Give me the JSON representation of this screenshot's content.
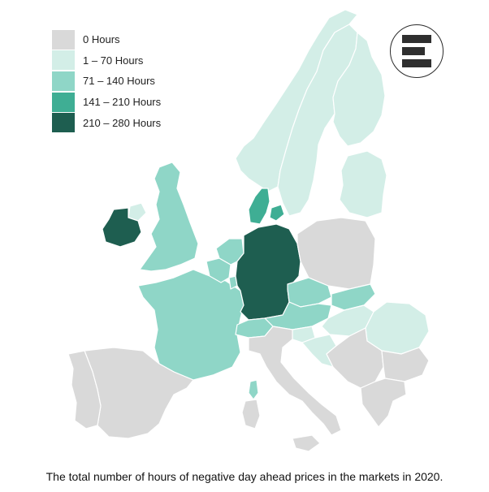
{
  "legend": {
    "items": [
      {
        "label": "0 Hours",
        "color": "#d9d9d9"
      },
      {
        "label": "1 – 70 Hours",
        "color": "#d3eee7"
      },
      {
        "label": "71 – 140 Hours",
        "color": "#8fd6c7"
      },
      {
        "label": "141 – 210 Hours",
        "color": "#3fae94"
      },
      {
        "label": "210 – 280 Hours",
        "color": "#1e5e50"
      }
    ]
  },
  "caption": "The total number of hours of negative day ahead prices in the markets in 2020.",
  "logo": {
    "icon": "stacked-bars-logo-icon"
  },
  "colors": {
    "border": "#ffffff",
    "background": "#ffffff"
  },
  "regions": [
    {
      "name": "germany",
      "class": 4
    },
    {
      "name": "ireland",
      "class": 4
    },
    {
      "name": "denmark",
      "class": 3
    },
    {
      "name": "great-britain",
      "class": 2
    },
    {
      "name": "france",
      "class": 2
    },
    {
      "name": "belgium",
      "class": 2
    },
    {
      "name": "netherlands",
      "class": 2
    },
    {
      "name": "switzerland",
      "class": 2
    },
    {
      "name": "austria",
      "class": 2
    },
    {
      "name": "czechia",
      "class": 2
    },
    {
      "name": "slovakia",
      "class": 2
    },
    {
      "name": "hungary",
      "class": 1
    },
    {
      "name": "slovenia",
      "class": 1
    },
    {
      "name": "croatia",
      "class": 1
    },
    {
      "name": "romania",
      "class": 1
    },
    {
      "name": "norway",
      "class": 1
    },
    {
      "name": "sweden",
      "class": 1
    },
    {
      "name": "finland",
      "class": 1
    },
    {
      "name": "baltics",
      "class": 1
    },
    {
      "name": "corsica",
      "class": 2
    },
    {
      "name": "poland",
      "class": 0
    },
    {
      "name": "spain",
      "class": 0
    },
    {
      "name": "portugal",
      "class": 0
    },
    {
      "name": "italy",
      "class": 0
    },
    {
      "name": "sardinia",
      "class": 0
    },
    {
      "name": "sicily",
      "class": 0
    },
    {
      "name": "balkans",
      "class": 0
    },
    {
      "name": "bulgaria",
      "class": 0
    },
    {
      "name": "greece",
      "class": 0
    },
    {
      "name": "northern-ireland",
      "class": 1
    },
    {
      "name": "luxembourg",
      "class": 2
    }
  ]
}
